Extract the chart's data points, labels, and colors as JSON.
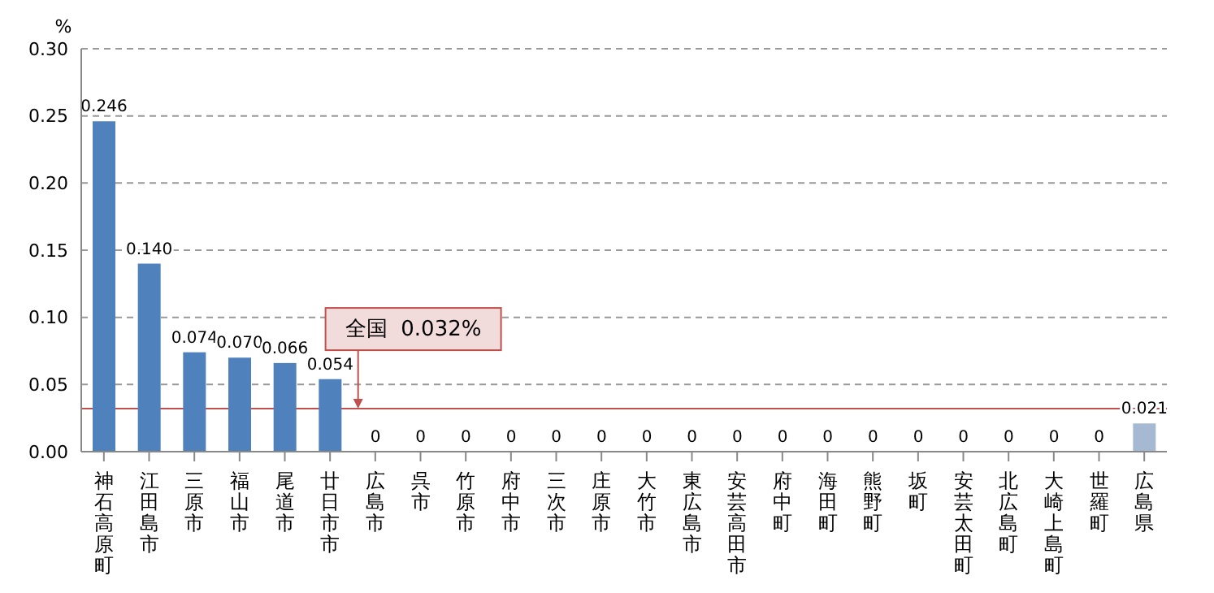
{
  "chart_data": {
    "type": "bar",
    "ylabel": "%",
    "categories": [
      "神石高原町",
      "江田島市",
      "三原市",
      "福山市",
      "尾道市",
      "廿日市市",
      "広島市",
      "呉市",
      "竹原市",
      "府中市",
      "三次市",
      "庄原市",
      "大竹市",
      "東広島市",
      "安芸高田市",
      "府中町",
      "海田町",
      "熊野町",
      "坂町",
      "安芸太田町",
      "北広島町",
      "大崎上島町",
      "世羅町",
      "広島県"
    ],
    "values": [
      0.246,
      0.14,
      0.074,
      0.07,
      0.066,
      0.054,
      0,
      0,
      0,
      0,
      0,
      0,
      0,
      0,
      0,
      0,
      0,
      0,
      0,
      0,
      0,
      0,
      0,
      0.021
    ],
    "value_labels": [
      "0.246",
      "0.140",
      "0.074",
      "0.070",
      "0.066",
      "0.054",
      "0",
      "0",
      "0",
      "0",
      "0",
      "0",
      "0",
      "0",
      "0",
      "0",
      "0",
      "0",
      "0",
      "0",
      "0",
      "0",
      "0",
      "0.021"
    ],
    "colors": [
      "#4f81bd",
      "#4f81bd",
      "#4f81bd",
      "#4f81bd",
      "#4f81bd",
      "#4f81bd",
      "#4f81bd",
      "#4f81bd",
      "#4f81bd",
      "#4f81bd",
      "#4f81bd",
      "#4f81bd",
      "#4f81bd",
      "#4f81bd",
      "#4f81bd",
      "#4f81bd",
      "#4f81bd",
      "#4f81bd",
      "#4f81bd",
      "#4f81bd",
      "#4f81bd",
      "#4f81bd",
      "#4f81bd",
      "#a6b9d3"
    ],
    "ylim": [
      0,
      0.3
    ],
    "yticks": [
      {
        "value": 0,
        "label": "0.00"
      },
      {
        "value": 0.05,
        "label": "0.05"
      },
      {
        "value": 0.1,
        "label": "0.10"
      },
      {
        "value": 0.15,
        "label": "0.15"
      },
      {
        "value": 0.2,
        "label": "0.20"
      },
      {
        "value": 0.25,
        "label": "0.25"
      },
      {
        "value": 0.3,
        "label": "0.30"
      }
    ],
    "grid": "y",
    "ref_lines": [
      {
        "axis": "y",
        "value": 0.032,
        "label": "全国  0.032%",
        "color": "#c0504d"
      }
    ]
  }
}
